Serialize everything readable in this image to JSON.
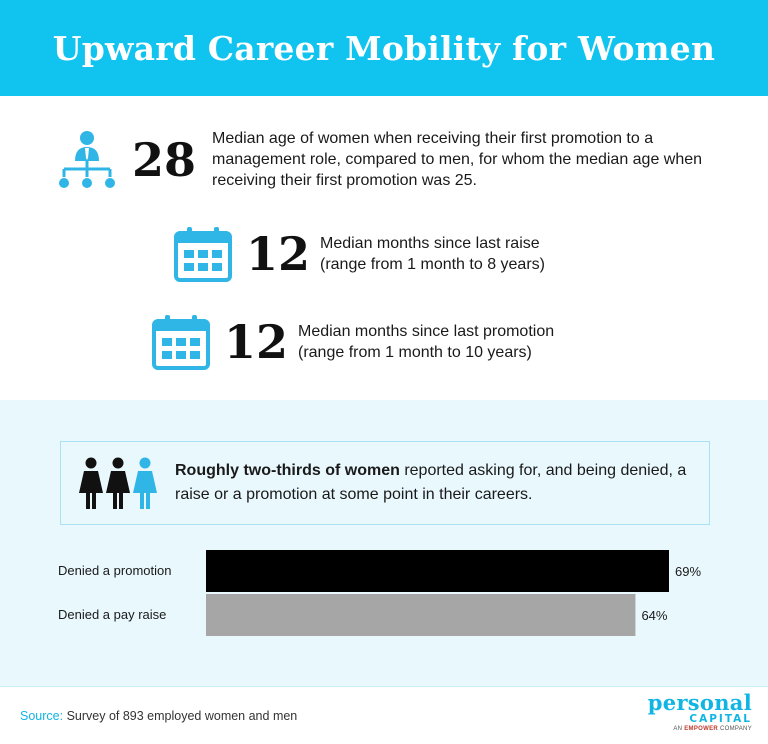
{
  "title": "Upward Career Mobility for Women",
  "stats": [
    {
      "number": "28",
      "icon": "org-chart-icon",
      "text": "Median age of women when receiving their first promotion to a management role, compared to men, for whom the median age when receiving their first promotion was 25."
    },
    {
      "number": "12",
      "icon": "calendar-icon",
      "line1": "Median months since last raise",
      "line2": "(range from 1 month to 8 years)"
    },
    {
      "number": "12",
      "icon": "calendar-icon",
      "line1": "Median months since last promotion",
      "line2": "(range from 1 month to 10 years)"
    }
  ],
  "callout": {
    "icon": "women-group-icon",
    "bold": "Roughly two-thirds of women",
    "rest": " reported asking for, and being denied, a raise or a promotion at some point in their careers."
  },
  "chart_data": {
    "type": "bar",
    "orientation": "horizontal",
    "categories": [
      "Denied a promotion",
      "Denied a pay raise"
    ],
    "values": [
      69,
      64
    ],
    "labels": [
      "69%",
      "64%"
    ],
    "colors": [
      "#000000",
      "#a6a6a6"
    ],
    "xlim": [
      0,
      100
    ],
    "grid": false
  },
  "footer": {
    "source_label": "Source:",
    "source_text": " Survey of 893 employed women and men",
    "logo_line1": "personal",
    "logo_line2": "CAPITAL",
    "logo_line3_a": "AN ",
    "logo_line3_b": "EMPOWER",
    "logo_line3_c": " COMPANY"
  },
  "colors": {
    "accent": "#11c3ef",
    "light_bg": "#e9f8fd"
  }
}
